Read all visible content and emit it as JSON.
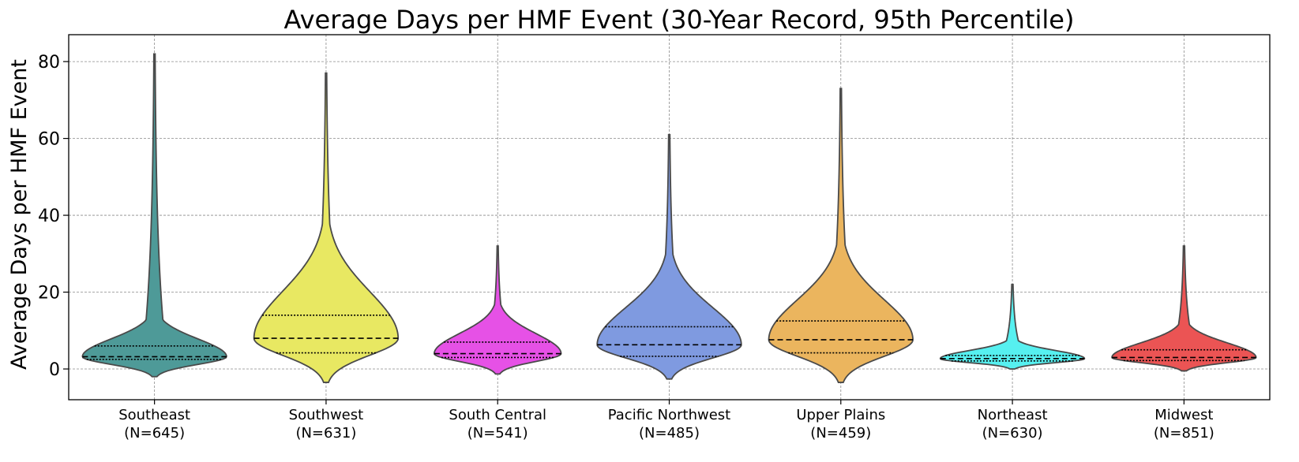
{
  "chart_data": {
    "type": "violin",
    "title": "Average Days per HMF Event (30-Year Record, 95th Percentile)",
    "xlabel": "",
    "ylabel": "Average Days per HMF Event",
    "ylim": [
      -8,
      87
    ],
    "yticks": [
      0,
      20,
      40,
      60,
      80
    ],
    "grid": true,
    "categories": [
      {
        "name": "Southeast",
        "n_label": "(N=645)",
        "color": "#4e9a98",
        "min": -2,
        "max": 82,
        "q1": 2.5,
        "median": 3.2,
        "q3": 6.0,
        "max_width": 1.0
      },
      {
        "name": "Southwest",
        "n_label": "(N=631)",
        "color": "#e8e862",
        "min": -3.5,
        "max": 77,
        "q1": 4.2,
        "median": 8.0,
        "q3": 14.0,
        "max_width": 1.0
      },
      {
        "name": "South Central",
        "n_label": "(N=541)",
        "color": "#e651e6",
        "min": -1.3,
        "max": 32,
        "q1": 3.0,
        "median": 4.0,
        "q3": 7.0,
        "max_width": 0.88
      },
      {
        "name": "Pacific Northwest",
        "n_label": "(N=485)",
        "color": "#7f9ae0",
        "min": -2.6,
        "max": 61,
        "q1": 3.3,
        "median": 6.3,
        "q3": 11.0,
        "max_width": 1.0
      },
      {
        "name": "Upper Plains",
        "n_label": "(N=459)",
        "color": "#ebb55e",
        "min": -3.5,
        "max": 73,
        "q1": 4.2,
        "median": 7.6,
        "q3": 12.5,
        "max_width": 1.0
      },
      {
        "name": "Northeast",
        "n_label": "(N=630)",
        "color": "#56f0f0",
        "min": 0,
        "max": 22,
        "q1": 2.1,
        "median": 2.7,
        "q3": 3.5,
        "max_width": 1.0
      },
      {
        "name": "Midwest",
        "n_label": "(N=851)",
        "color": "#eb5454",
        "min": -0.5,
        "max": 32,
        "q1": 2.2,
        "median": 3.0,
        "q3": 5.0,
        "max_width": 1.0
      }
    ]
  }
}
